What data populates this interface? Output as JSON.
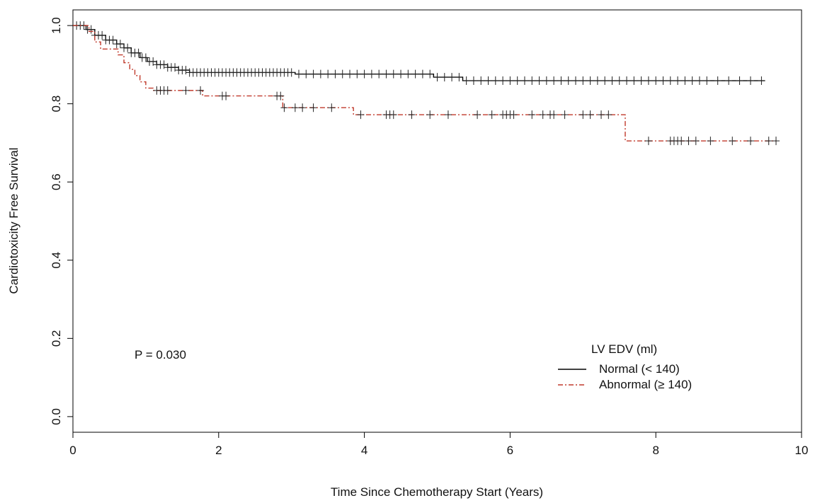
{
  "chart_data": {
    "type": "line",
    "chart_subtype": "kaplan-meier",
    "xlabel": "Time Since Chemotherapy Start (Years)",
    "ylabel": "Cardiotoxicity Free Survival",
    "xlim": [
      0,
      10
    ],
    "ylim": [
      0,
      1
    ],
    "xticks": [
      "0",
      "2",
      "4",
      "6",
      "8",
      "10"
    ],
    "yticks": [
      "0.0",
      "0.2",
      "0.4",
      "0.6",
      "0.8",
      "1.0"
    ],
    "grid": false,
    "annotation": "P = 0.030",
    "legend": {
      "title": "LV EDV (ml)",
      "position": "bottom-right",
      "entries": [
        "Normal (< 140)",
        "Abnormal (≥ 140)"
      ]
    },
    "series": [
      {
        "name": "Normal (< 140)",
        "color": "#000000",
        "line_style": "solid",
        "steps": [
          [
            0,
            1.0
          ],
          [
            0.18,
            0.99
          ],
          [
            0.3,
            0.975
          ],
          [
            0.45,
            0.963
          ],
          [
            0.6,
            0.953
          ],
          [
            0.7,
            0.943
          ],
          [
            0.8,
            0.93
          ],
          [
            0.92,
            0.918
          ],
          [
            1.02,
            0.908
          ],
          [
            1.15,
            0.9
          ],
          [
            1.3,
            0.893
          ],
          [
            1.45,
            0.886
          ],
          [
            1.6,
            0.88
          ],
          [
            3.05,
            0.876
          ],
          [
            4.95,
            0.868
          ],
          [
            5.35,
            0.859
          ],
          [
            9.5,
            0.859
          ]
        ],
        "censored": [
          0.05,
          0.1,
          0.15,
          0.2,
          0.25,
          0.3,
          0.35,
          0.4,
          0.45,
          0.5,
          0.55,
          0.6,
          0.65,
          0.7,
          0.75,
          0.8,
          0.85,
          0.9,
          0.95,
          1.0,
          1.05,
          1.1,
          1.15,
          1.2,
          1.25,
          1.3,
          1.35,
          1.4,
          1.45,
          1.5,
          1.55,
          1.6,
          1.65,
          1.7,
          1.75,
          1.8,
          1.85,
          1.9,
          1.95,
          2.0,
          2.05,
          2.1,
          2.15,
          2.2,
          2.25,
          2.3,
          2.35,
          2.4,
          2.45,
          2.5,
          2.55,
          2.6,
          2.65,
          2.7,
          2.75,
          2.8,
          2.85,
          2.9,
          2.95,
          3.0,
          3.1,
          3.2,
          3.3,
          3.4,
          3.5,
          3.6,
          3.7,
          3.8,
          3.9,
          4.0,
          4.1,
          4.2,
          4.3,
          4.4,
          4.5,
          4.6,
          4.7,
          4.8,
          4.9,
          5.0,
          5.1,
          5.2,
          5.3,
          5.4,
          5.5,
          5.6,
          5.7,
          5.8,
          5.9,
          6.0,
          6.1,
          6.2,
          6.3,
          6.4,
          6.5,
          6.6,
          6.7,
          6.8,
          6.9,
          7.0,
          7.1,
          7.2,
          7.3,
          7.4,
          7.5,
          7.6,
          7.7,
          7.8,
          7.9,
          8.0,
          8.1,
          8.2,
          8.3,
          8.4,
          8.5,
          8.6,
          8.7,
          8.85,
          9.0,
          9.15,
          9.3,
          9.45
        ]
      },
      {
        "name": "Abnormal (≥ 140)",
        "color": "#c0392b",
        "line_style": "dashdot",
        "steps": [
          [
            0,
            1.0
          ],
          [
            0.22,
            0.985
          ],
          [
            0.3,
            0.958
          ],
          [
            0.38,
            0.94
          ],
          [
            0.62,
            0.925
          ],
          [
            0.7,
            0.905
          ],
          [
            0.78,
            0.888
          ],
          [
            0.85,
            0.872
          ],
          [
            0.92,
            0.856
          ],
          [
            1.0,
            0.84
          ],
          [
            1.1,
            0.834
          ],
          [
            1.78,
            0.82
          ],
          [
            2.88,
            0.79
          ],
          [
            3.85,
            0.772
          ],
          [
            7.58,
            0.705
          ],
          [
            9.65,
            0.705
          ]
        ],
        "censored": [
          1.15,
          1.2,
          1.25,
          1.3,
          1.55,
          1.75,
          2.05,
          2.1,
          2.8,
          2.85,
          2.9,
          3.05,
          3.15,
          3.3,
          3.55,
          3.95,
          4.3,
          4.35,
          4.4,
          4.65,
          4.9,
          5.15,
          5.55,
          5.75,
          5.9,
          5.95,
          6.0,
          6.05,
          6.3,
          6.45,
          6.55,
          6.6,
          6.75,
          7.0,
          7.1,
          7.25,
          7.35,
          7.9,
          8.2,
          8.25,
          8.3,
          8.35,
          8.45,
          8.55,
          8.75,
          9.05,
          9.3,
          9.55,
          9.65
        ]
      }
    ]
  }
}
